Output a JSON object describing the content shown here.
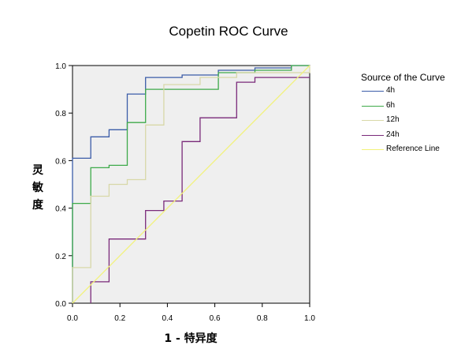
{
  "chart_data": {
    "type": "line",
    "title": "Copetin ROC Curve",
    "xlabel": "1 - 特异度",
    "ylabel": "灵敏度",
    "xlim": [
      0,
      1
    ],
    "ylim": [
      0,
      1
    ],
    "x_ticks": [
      "0.0",
      "0.2",
      "0.4",
      "0.6",
      "0.8",
      "1.0"
    ],
    "y_ticks": [
      "0.0",
      "0.2",
      "0.4",
      "0.6",
      "0.8",
      "1.0"
    ],
    "grid": false,
    "legend_title": "Source of the Curve",
    "legend_position": "right",
    "plot_background": "#efefef",
    "series": [
      {
        "name": "4h",
        "color": "#3b5ca8",
        "points": [
          [
            0,
            0
          ],
          [
            0,
            0.61
          ],
          [
            0.077,
            0.61
          ],
          [
            0.077,
            0.7
          ],
          [
            0.154,
            0.7
          ],
          [
            0.154,
            0.73
          ],
          [
            0.231,
            0.73
          ],
          [
            0.231,
            0.88
          ],
          [
            0.308,
            0.88
          ],
          [
            0.308,
            0.95
          ],
          [
            0.462,
            0.95
          ],
          [
            0.462,
            0.96
          ],
          [
            0.615,
            0.96
          ],
          [
            0.615,
            0.98
          ],
          [
            0.769,
            0.98
          ],
          [
            0.769,
            0.99
          ],
          [
            0.923,
            0.99
          ],
          [
            0.923,
            1.0
          ],
          [
            1.0,
            1.0
          ]
        ]
      },
      {
        "name": "6h",
        "color": "#3eaa4a",
        "points": [
          [
            0,
            0
          ],
          [
            0,
            0.42
          ],
          [
            0.077,
            0.42
          ],
          [
            0.077,
            0.57
          ],
          [
            0.154,
            0.57
          ],
          [
            0.154,
            0.58
          ],
          [
            0.231,
            0.58
          ],
          [
            0.231,
            0.76
          ],
          [
            0.308,
            0.76
          ],
          [
            0.308,
            0.9
          ],
          [
            0.615,
            0.9
          ],
          [
            0.615,
            0.97
          ],
          [
            0.769,
            0.97
          ],
          [
            0.769,
            0.98
          ],
          [
            0.923,
            0.98
          ],
          [
            0.923,
            1.0
          ],
          [
            1.0,
            1.0
          ]
        ]
      },
      {
        "name": "12h",
        "color": "#d8d8a8",
        "points": [
          [
            0,
            0
          ],
          [
            0,
            0.15
          ],
          [
            0.077,
            0.15
          ],
          [
            0.077,
            0.45
          ],
          [
            0.154,
            0.45
          ],
          [
            0.154,
            0.5
          ],
          [
            0.231,
            0.5
          ],
          [
            0.231,
            0.52
          ],
          [
            0.308,
            0.52
          ],
          [
            0.308,
            0.75
          ],
          [
            0.385,
            0.75
          ],
          [
            0.385,
            0.92
          ],
          [
            0.538,
            0.92
          ],
          [
            0.538,
            0.95
          ],
          [
            0.692,
            0.95
          ],
          [
            0.692,
            0.97
          ],
          [
            1.0,
            0.97
          ],
          [
            1.0,
            1.0
          ]
        ]
      },
      {
        "name": "24h",
        "color": "#7a2a7a",
        "points": [
          [
            0.077,
            0
          ],
          [
            0.077,
            0.09
          ],
          [
            0.154,
            0.09
          ],
          [
            0.154,
            0.27
          ],
          [
            0.308,
            0.27
          ],
          [
            0.308,
            0.39
          ],
          [
            0.385,
            0.39
          ],
          [
            0.385,
            0.43
          ],
          [
            0.462,
            0.43
          ],
          [
            0.462,
            0.68
          ],
          [
            0.538,
            0.68
          ],
          [
            0.538,
            0.7
          ],
          [
            0.538,
            0.78
          ],
          [
            0.692,
            0.78
          ],
          [
            0.692,
            0.93
          ],
          [
            0.769,
            0.93
          ],
          [
            0.769,
            0.95
          ],
          [
            1.0,
            0.95
          ]
        ]
      },
      {
        "name": "Reference Line",
        "color": "#f2f27a",
        "points": [
          [
            0,
            0
          ],
          [
            1,
            1
          ]
        ]
      }
    ]
  }
}
